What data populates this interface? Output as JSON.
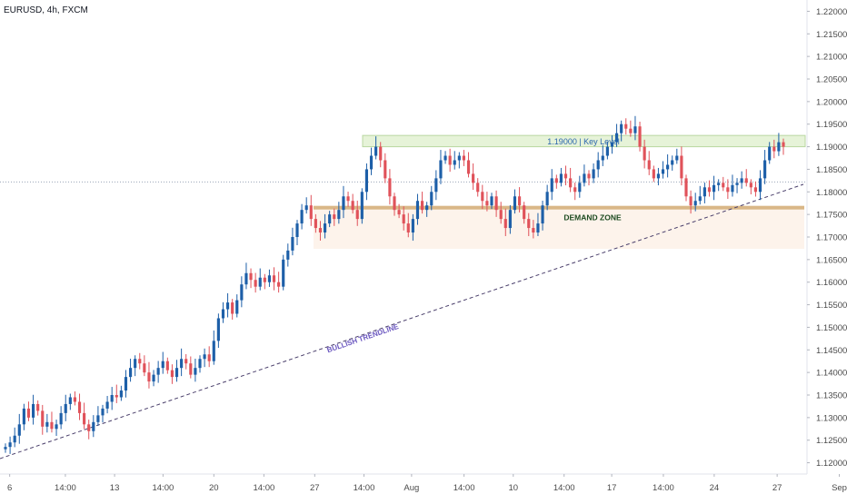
{
  "header": {
    "symbol": "EURUSD, 4h, FXCM"
  },
  "colors": {
    "up": "#1d5fa8",
    "down": "#e0525a",
    "key_level_fill": "#e6f3d8",
    "key_level_border": "#b9d7a0",
    "key_level_text": "#2a65ad",
    "demand_line": "#d9b787",
    "demand_fill": "#fbeadb",
    "demand_text": "#1c4a1f",
    "trendline": "#4a3f6b",
    "trendline_text": "#6b57c0",
    "axis_text": "#4a4a4a",
    "current_price_line": "#9aa5b8"
  },
  "chart_data": {
    "type": "candlestick",
    "symbol": "EURUSD",
    "timeframe": "4h",
    "source": "FXCM",
    "ylim": [
      1.1175,
      1.2225
    ],
    "yticks": [
      "1.22000",
      "1.21500",
      "1.21000",
      "1.20500",
      "1.20000",
      "1.19500",
      "1.19000",
      "1.18500",
      "1.18000",
      "1.17500",
      "1.17000",
      "1.16500",
      "1.16000",
      "1.15500",
      "1.15000",
      "1.14500",
      "1.14000",
      "1.13500",
      "1.13000",
      "1.12500",
      "1.12000"
    ],
    "xticks": [
      {
        "label": "6",
        "pos": 0.012
      },
      {
        "label": "14:00",
        "pos": 0.081
      },
      {
        "label": "13",
        "pos": 0.142
      },
      {
        "label": "14:00",
        "pos": 0.202
      },
      {
        "label": "20",
        "pos": 0.265
      },
      {
        "label": "14:00",
        "pos": 0.327
      },
      {
        "label": "27",
        "pos": 0.39
      },
      {
        "label": "14:00",
        "pos": 0.451
      },
      {
        "label": "Aug",
        "pos": 0.51
      },
      {
        "label": "14:00",
        "pos": 0.575
      },
      {
        "label": "10",
        "pos": 0.636
      },
      {
        "label": "14:00",
        "pos": 0.699
      },
      {
        "label": "17",
        "pos": 0.758
      },
      {
        "label": "14:00",
        "pos": 0.822
      },
      {
        "label": "24",
        "pos": 0.885
      },
      {
        "label": "27",
        "pos": 0.963
      },
      {
        "label": "Sep",
        "pos": 1.04
      }
    ],
    "candles_close": [
      1.1235,
      1.1245,
      1.126,
      1.1285,
      1.132,
      1.13,
      1.133,
      1.1315,
      1.128,
      1.129,
      1.1275,
      1.1285,
      1.131,
      1.133,
      1.1345,
      1.1335,
      1.131,
      1.1285,
      1.127,
      1.129,
      1.1305,
      1.132,
      1.1335,
      1.135,
      1.1345,
      1.136,
      1.139,
      1.141,
      1.143,
      1.142,
      1.14,
      1.138,
      1.1395,
      1.141,
      1.1425,
      1.1405,
      1.139,
      1.141,
      1.143,
      1.142,
      1.1395,
      1.141,
      1.143,
      1.144,
      1.1425,
      1.147,
      1.152,
      1.154,
      1.1555,
      1.153,
      1.156,
      1.1595,
      1.162,
      1.1605,
      1.159,
      1.161,
      1.16,
      1.1615,
      1.16,
      1.159,
      1.165,
      1.167,
      1.17,
      1.173,
      1.176,
      1.177,
      1.174,
      1.172,
      1.171,
      1.173,
      1.175,
      1.174,
      1.176,
      1.179,
      1.178,
      1.176,
      1.174,
      1.18,
      1.185,
      1.188,
      1.19,
      1.187,
      1.183,
      1.179,
      1.176,
      1.175,
      1.173,
      1.171,
      1.174,
      1.178,
      1.176,
      1.177,
      1.18,
      1.183,
      1.187,
      1.188,
      1.186,
      1.187,
      1.188,
      1.187,
      1.184,
      1.182,
      1.18,
      1.178,
      1.177,
      1.179,
      1.176,
      1.174,
      1.172,
      1.176,
      1.179,
      1.177,
      1.174,
      1.172,
      1.171,
      1.173,
      1.177,
      1.18,
      1.183,
      1.182,
      1.184,
      1.183,
      1.181,
      1.18,
      1.182,
      1.184,
      1.183,
      1.185,
      1.187,
      1.188,
      1.19,
      1.191,
      1.193,
      1.195,
      1.194,
      1.193,
      1.1945,
      1.19,
      1.187,
      1.185,
      1.183,
      1.184,
      1.185,
      1.186,
      1.187,
      1.188,
      1.183,
      1.179,
      1.177,
      1.178,
      1.179,
      1.181,
      1.18,
      1.1815,
      1.182,
      1.181,
      1.18,
      1.1815,
      1.182,
      1.183,
      1.182,
      1.181,
      1.18,
      1.183,
      1.187,
      1.19,
      1.189,
      1.191,
      1.19
    ],
    "annotations": [
      {
        "type": "rect",
        "label": "1.19000 | Key Level",
        "y_range": [
          1.19,
          1.1925
        ]
      },
      {
        "type": "zone",
        "label": "DEMAND ZONE",
        "y_range": [
          1.171,
          1.1765
        ],
        "line": 1.1765
      },
      {
        "type": "trendline",
        "label": "BULLISH TRENDLINE"
      },
      {
        "type": "hline_dotted",
        "y": 1.1822
      }
    ]
  }
}
